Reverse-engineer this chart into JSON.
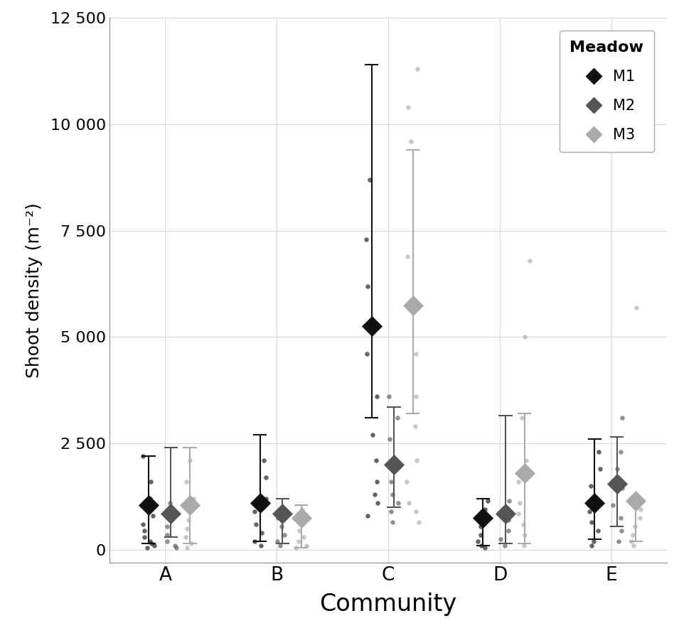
{
  "communities": [
    "A",
    "B",
    "C",
    "D",
    "E"
  ],
  "meadows": [
    "M1",
    "M2",
    "M3"
  ],
  "meadow_colors": {
    "M1": "#111111",
    "M2": "#555555",
    "M3": "#aaaaaa"
  },
  "x_offsets": {
    "M1": -0.15,
    "M2": 0.05,
    "M3": 0.22
  },
  "means": {
    "A": {
      "M1": 1050,
      "M2": 850,
      "M3": 1050
    },
    "B": {
      "M1": 1100,
      "M2": 850,
      "M3": 750
    },
    "C": {
      "M1": 5250,
      "M2": 2000,
      "M3": 5750
    },
    "D": {
      "M1": 750,
      "M2": 850,
      "M3": 1800
    },
    "E": {
      "M1": 1100,
      "M2": 1550,
      "M3": 1150
    }
  },
  "error_low": {
    "A": {
      "M1": 150,
      "M2": 300,
      "M3": 150
    },
    "B": {
      "M1": 200,
      "M2": 150,
      "M3": 50
    },
    "C": {
      "M1": 3100,
      "M2": 1000,
      "M3": 3200
    },
    "D": {
      "M1": 100,
      "M2": 150,
      "M3": 150
    },
    "E": {
      "M1": 250,
      "M2": 550,
      "M3": 200
    }
  },
  "error_high": {
    "A": {
      "M1": 2200,
      "M2": 2400,
      "M3": 2400
    },
    "B": {
      "M1": 2700,
      "M2": 1200,
      "M3": 1050
    },
    "C": {
      "M1": 11400,
      "M2": 3350,
      "M3": 9400
    },
    "D": {
      "M1": 1200,
      "M2": 3150,
      "M3": 3200
    },
    "E": {
      "M1": 2600,
      "M2": 2650,
      "M3": 1200
    }
  },
  "jitter_points": {
    "A": {
      "M1": [
        50,
        100,
        150,
        200,
        300,
        450,
        600,
        800,
        1200,
        1600,
        2200
      ],
      "M2": [
        50,
        100,
        200,
        350,
        550,
        750,
        950,
        1100
      ],
      "M3": [
        50,
        150,
        300,
        500,
        700,
        950,
        1200,
        1600,
        2100
      ]
    },
    "B": {
      "M1": [
        100,
        200,
        400,
        600,
        900,
        1200,
        1700,
        2100
      ],
      "M2": [
        100,
        200,
        350,
        550,
        750,
        1000
      ],
      "M3": [
        50,
        100,
        200,
        300,
        450,
        700,
        950
      ]
    },
    "C": {
      "M1": [
        800,
        1100,
        1300,
        1600,
        2100,
        2700,
        3600,
        4600,
        6200,
        7300,
        8700
      ],
      "M2": [
        650,
        900,
        1100,
        1300,
        1600,
        2100,
        2600,
        3100,
        3600
      ],
      "M3": [
        650,
        900,
        1100,
        1600,
        2100,
        2900,
        3600,
        4600,
        6900,
        9600,
        10400,
        11300
      ]
    },
    "D": {
      "M1": [
        50,
        100,
        200,
        350,
        550,
        750,
        950,
        1150
      ],
      "M2": [
        100,
        250,
        450,
        700,
        950,
        1150
      ],
      "M3": [
        100,
        350,
        600,
        850,
        1100,
        1600,
        2100,
        3100,
        5000,
        6800
      ]
    },
    "E": {
      "M1": [
        100,
        200,
        450,
        650,
        900,
        1150,
        1500,
        1900,
        2300
      ],
      "M2": [
        200,
        450,
        750,
        1050,
        1450,
        1900,
        2300,
        3100
      ],
      "M3": [
        100,
        200,
        350,
        550,
        750,
        950,
        1150,
        5700
      ]
    }
  },
  "xlabel": "Community",
  "ylabel": "Shoot density (m⁻²)",
  "ylim": [
    -300,
    12500
  ],
  "yticks": [
    0,
    2500,
    5000,
    7500,
    10000,
    12500
  ],
  "ytick_labels": [
    "0",
    "2 500",
    "5 000",
    "7 500",
    "10 000",
    "12 500"
  ],
  "background_color": "#ffffff",
  "grid_color": "#d8d8d8",
  "legend_title": "Meadow"
}
